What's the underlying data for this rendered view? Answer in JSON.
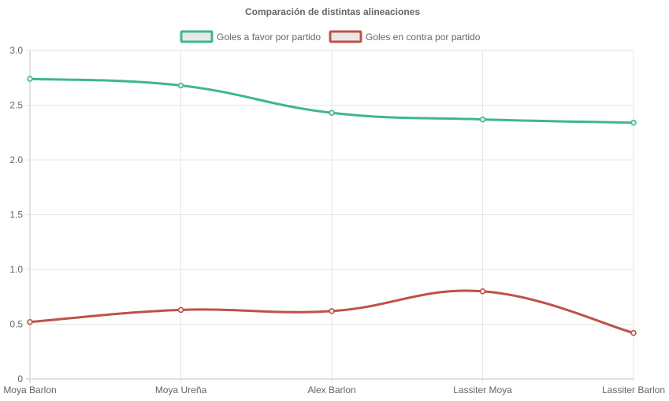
{
  "chart_data": {
    "type": "line",
    "title": "Comparación de distintas alineaciones",
    "categories": [
      "Moya Barlon",
      "Moya Ureña",
      "Alex Barlon",
      "Lassiter Moya",
      "Lassiter Barlon"
    ],
    "series": [
      {
        "name": "Goles a favor por partido",
        "color": "#3fb595",
        "values": [
          2.74,
          2.68,
          2.43,
          2.37,
          2.34
        ]
      },
      {
        "name": "Goles en contra por partido",
        "color": "#bf5148",
        "values": [
          0.52,
          0.63,
          0.62,
          0.8,
          0.42
        ]
      }
    ],
    "ylim": [
      0,
      3.0
    ],
    "yticks": [
      "0",
      "0.5",
      "1.0",
      "1.5",
      "2.0",
      "2.5",
      "3.0"
    ],
    "xlabel": "",
    "ylabel": "",
    "grid": true,
    "legend_position": "top",
    "legend_box_fill": "#e8e8e8"
  }
}
